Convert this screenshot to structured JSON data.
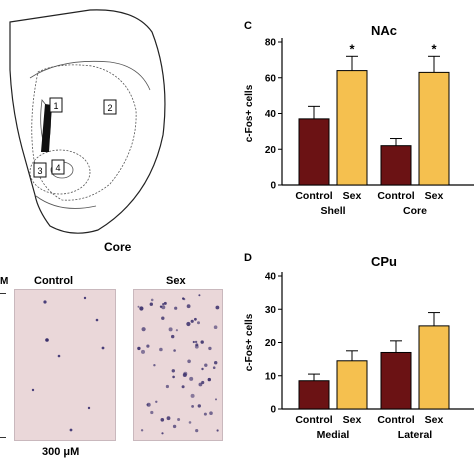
{
  "figure": {
    "panel_c_letter": "C",
    "panel_d_letter": "D",
    "atlas_labels": [
      "1",
      "2",
      "3",
      "4"
    ],
    "atlas_caption": "Core",
    "micro": {
      "edge_text": "M",
      "left_label": "Control",
      "right_label": "Sex",
      "scale_text": "300 μM"
    }
  },
  "colors": {
    "control": "#6b1214",
    "sex": "#f5c04f",
    "probe": "#111111",
    "stain_bg": "#ead7d9",
    "stain_dot": "#3a2f6b"
  },
  "chart_data": [
    {
      "type": "bar",
      "title": "NAc",
      "ylabel": "c-Fos+ cells",
      "ylim": [
        0,
        80
      ],
      "yticks": [
        "0",
        "20",
        "40",
        "60",
        "80"
      ],
      "categories": [
        "Control",
        "Sex",
        "Control",
        "Sex"
      ],
      "tick_labels": [
        "Control",
        "Sex",
        "Control",
        "Sex"
      ],
      "groups": [
        "Shell",
        "Core"
      ],
      "values": [
        37,
        64,
        22,
        63
      ],
      "errors": [
        7,
        8,
        4,
        9
      ],
      "significance": [
        "",
        "*",
        "",
        "*"
      ]
    },
    {
      "type": "bar",
      "title": "CPu",
      "ylabel": "c-Fos+ cells",
      "ylim": [
        0,
        40
      ],
      "yticks": [
        "0",
        "10",
        "20",
        "30",
        "40"
      ],
      "categories": [
        "Control",
        "Sex",
        "Control",
        "Sex"
      ],
      "tick_labels": [
        "Control",
        "Sex",
        "Control",
        "Sex"
      ],
      "groups": [
        "Medial",
        "Lateral"
      ],
      "values": [
        8.5,
        14.5,
        17,
        25
      ],
      "errors": [
        2,
        3,
        3.5,
        4
      ],
      "significance": [
        "",
        "",
        "",
        ""
      ]
    }
  ]
}
